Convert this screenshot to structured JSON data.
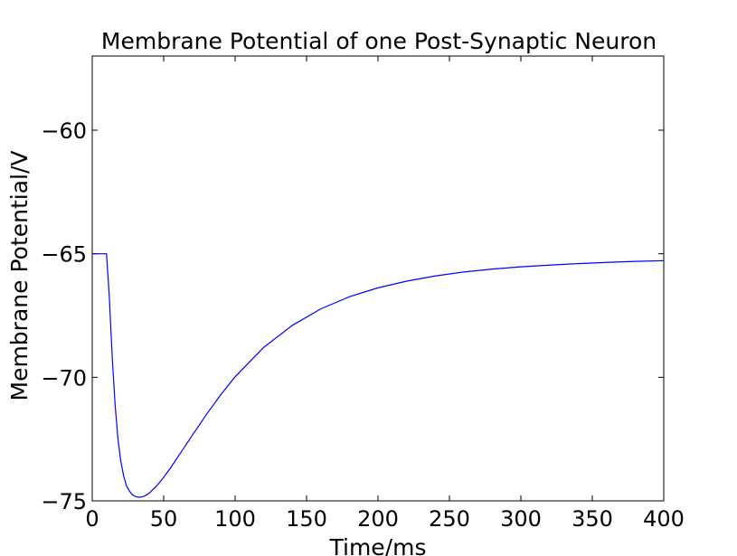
{
  "chart_data": {
    "type": "line",
    "title": "Membrane Potential of one Post-Synaptic Neuron",
    "xlabel": "Time/ms",
    "ylabel": "Membrane Potential/V",
    "xlim": [
      0,
      400
    ],
    "ylim": [
      -75,
      -57
    ],
    "xticks": [
      0,
      50,
      100,
      150,
      200,
      250,
      300,
      350,
      400
    ],
    "xtick_labels": [
      "0",
      "50",
      "100",
      "150",
      "200",
      "250",
      "300",
      "350",
      "400"
    ],
    "yticks": [
      -75,
      -70,
      -65,
      -60
    ],
    "ytick_labels": [
      "−75",
      "−70",
      "−65",
      "−60"
    ],
    "grid": false,
    "line_color": "#0000ff",
    "series": [
      {
        "x": [
          0,
          10,
          12,
          14,
          16,
          18,
          20,
          22,
          24,
          26,
          28,
          30,
          32,
          34,
          36,
          38,
          40,
          45,
          50,
          55,
          60,
          70,
          80,
          90,
          100,
          120,
          140,
          160,
          180,
          200,
          220,
          240,
          260,
          280,
          300,
          320,
          340,
          360,
          380,
          400
        ],
        "y": [
          -65,
          -65,
          -66.8,
          -69.2,
          -71.1,
          -72.5,
          -73.4,
          -74.0,
          -74.4,
          -74.6,
          -74.75,
          -74.82,
          -74.85,
          -74.85,
          -74.82,
          -74.76,
          -74.68,
          -74.4,
          -74.05,
          -73.65,
          -73.22,
          -72.35,
          -71.5,
          -70.7,
          -69.98,
          -68.79,
          -67.9,
          -67.23,
          -66.74,
          -66.38,
          -66.11,
          -65.9,
          -65.74,
          -65.62,
          -65.53,
          -65.46,
          -65.4,
          -65.35,
          -65.31,
          -65.28
        ]
      }
    ]
  }
}
